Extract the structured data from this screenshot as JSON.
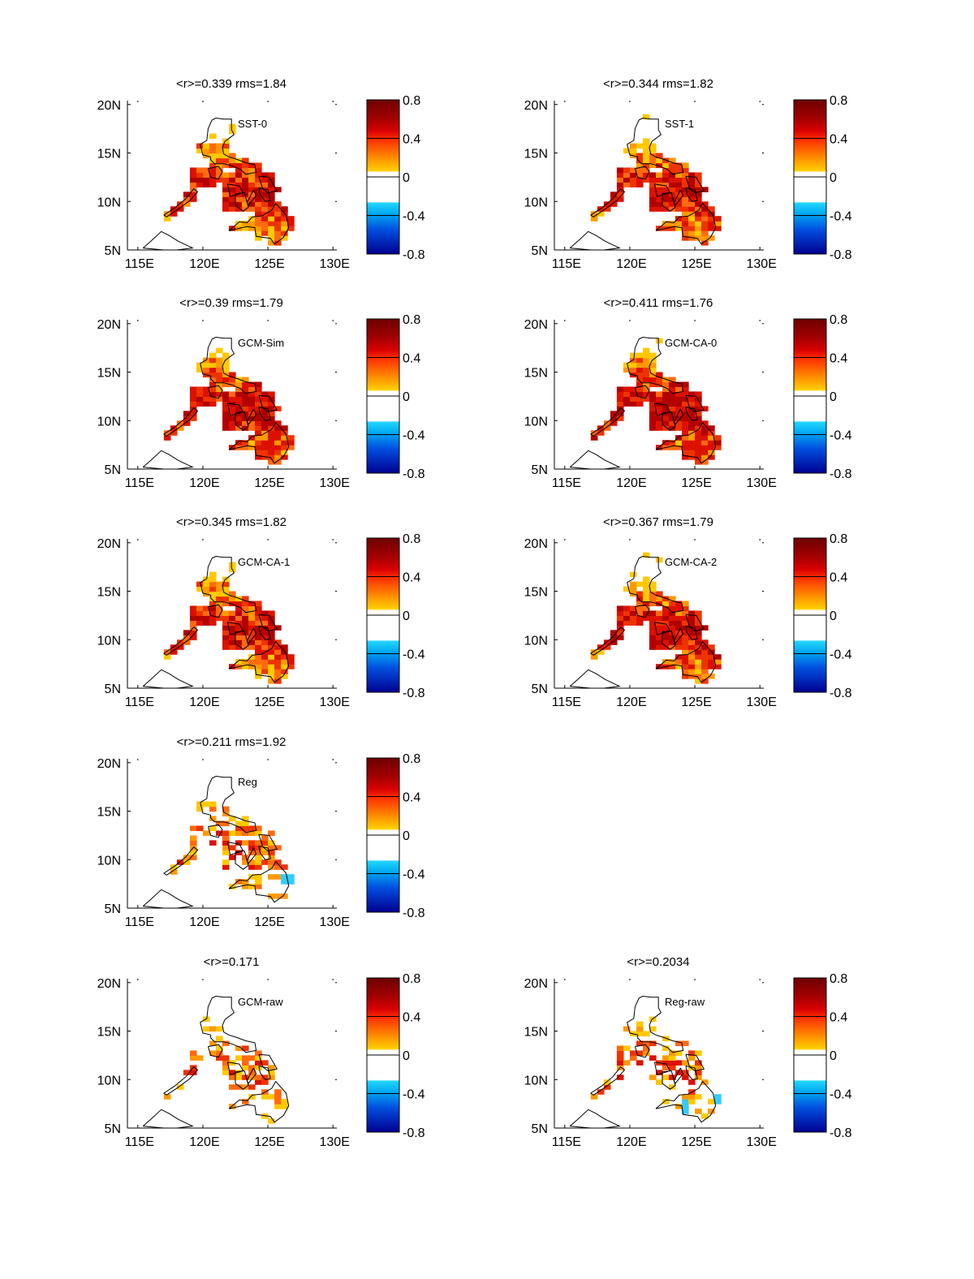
{
  "figure": {
    "axis": {
      "x_ticks": [
        "115E",
        "120E",
        "125E",
        "130E"
      ],
      "y_ticks": [
        "20N",
        "15N",
        "10N",
        "5N"
      ],
      "lon_range": [
        114,
        130
      ],
      "lat_range": [
        5,
        20.5
      ]
    },
    "colorbar": {
      "tick_labels": [
        "0.8",
        "0.4",
        "0",
        "-0.4",
        "-0.8"
      ],
      "tick_values": [
        0.8,
        0.4,
        0,
        -0.4,
        -0.8
      ],
      "range": [
        -0.8,
        0.8
      ],
      "colors": {
        "0.8": "#7f0000",
        "0.6": "#cc0000",
        "0.5": "#ee2200",
        "0.45": "#ff6600",
        "0.4": "#ff9900",
        "0.3": "#ffc800",
        "0.2": "#ffffff",
        "-0.2": "#ffffff",
        "-0.3": "#33ccff",
        "-0.4": "#0099ee",
        "-0.6": "#0033cc",
        "-0.8": "#000080"
      }
    },
    "panels": [
      {
        "id": "sst-0",
        "title": "<r>=0.339 rms=1.84",
        "label": "SST-0",
        "col": 0,
        "row": 0,
        "grid": {
          "0.6": "Rich",
          "0.4": "OrangeBand",
          "0.3": "YellowEdge"
        },
        "mean_r": 0.339,
        "rms": 1.84,
        "variant": "A"
      },
      {
        "id": "sst-1",
        "title": "<r>=0.344 rms=1.82",
        "label": "SST-1",
        "col": 1,
        "row": 0,
        "mean_r": 0.344,
        "rms": 1.82,
        "variant": "B"
      },
      {
        "id": "gcm-sim",
        "title": "<r>=0.39 rms=1.79",
        "label": "GCM-Sim",
        "col": 0,
        "row": 1,
        "mean_r": 0.39,
        "rms": 1.79,
        "variant": "C"
      },
      {
        "id": "gcm-ca-0",
        "title": "<r>=0.411 rms=1.76",
        "label": "GCM-CA-0",
        "col": 1,
        "row": 1,
        "mean_r": 0.411,
        "rms": 1.76,
        "variant": "C"
      },
      {
        "id": "gcm-ca-1",
        "title": "<r>=0.345 rms=1.82",
        "label": "GCM-CA-1",
        "col": 0,
        "row": 2,
        "mean_r": 0.345,
        "rms": 1.82,
        "variant": "A"
      },
      {
        "id": "gcm-ca-2",
        "title": "<r>=0.367 rms=1.79",
        "label": "GCM-CA-2",
        "col": 1,
        "row": 2,
        "mean_r": 0.367,
        "rms": 1.79,
        "variant": "B"
      },
      {
        "id": "reg",
        "title": "<r>=0.211 rms=1.92",
        "label": "Reg",
        "col": 0,
        "row": 3,
        "mean_r": 0.211,
        "rms": 1.92,
        "variant": "D"
      },
      {
        "id": "gcm-raw",
        "title": "<r>=0.171",
        "label": "GCM-raw",
        "col": 0,
        "row": 4,
        "mean_r": 0.171,
        "variant": "E"
      },
      {
        "id": "reg-raw",
        "title": "<r>=0.2034",
        "label": "Reg-raw",
        "col": 1,
        "row": 4,
        "mean_r": 0.2034,
        "variant": "F"
      }
    ]
  }
}
